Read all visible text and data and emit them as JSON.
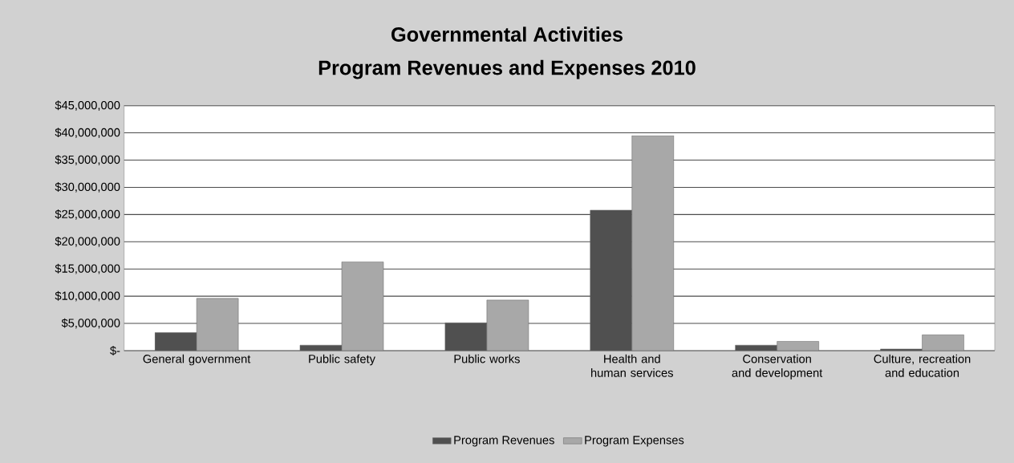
{
  "chart_data": {
    "type": "bar",
    "title": "Governmental Activities",
    "subtitle": "Program Revenues and Expenses 2010",
    "categories": [
      "General government",
      "Public safety",
      "Public works",
      "Health and human services",
      "Conservation and development",
      "Culture, recreation and education"
    ],
    "series": [
      {
        "name": "Program Revenues",
        "color": "#505050",
        "values": [
          3300000,
          1000000,
          5100000,
          25800000,
          1000000,
          300000
        ]
      },
      {
        "name": "Program Expenses",
        "color": "#a8a8a8",
        "values": [
          9600000,
          16300000,
          9300000,
          39500000,
          1700000,
          2900000
        ]
      }
    ],
    "ylim": [
      0,
      45000000
    ],
    "yticks": [
      {
        "value": 0,
        "label": "$-"
      },
      {
        "value": 5000000,
        "label": "$5,000,000"
      },
      {
        "value": 10000000,
        "label": "$10,000,000"
      },
      {
        "value": 15000000,
        "label": "$15,000,000"
      },
      {
        "value": 20000000,
        "label": "$20,000,000"
      },
      {
        "value": 25000000,
        "label": "$25,000,000"
      },
      {
        "value": 30000000,
        "label": "$30,000,000"
      },
      {
        "value": 35000000,
        "label": "$35,000,000"
      },
      {
        "value": 40000000,
        "label": "$40,000,000"
      },
      {
        "value": 45000000,
        "label": "$45,000,000"
      }
    ],
    "grid": "y",
    "legend": "bottom"
  }
}
